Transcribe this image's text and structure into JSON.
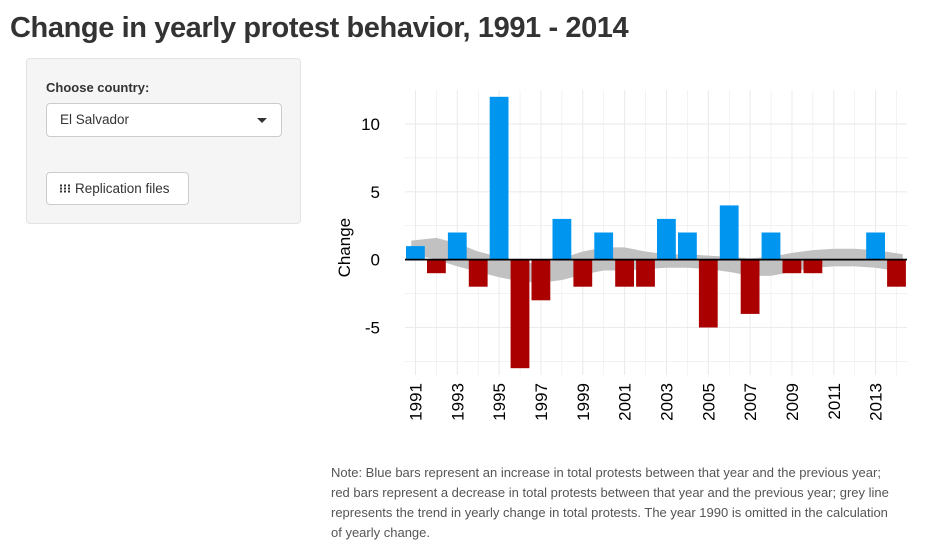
{
  "page": {
    "title": "Change in yearly protest behavior, 1991 - 2014"
  },
  "sidebar": {
    "country_label": "Choose country:",
    "country_value": "El Salvador",
    "replication_button": "Replication files",
    "replication_icon": "th-grid-icon"
  },
  "note": "Note: Blue bars represent an increase in total protests between that year and the previous year; red bars represent a decrease in total protests between that year and the previous year; grey line represents the trend in yearly change in total protests. The year 1990 is omitted in the calculation of yearly change.",
  "chart_data": {
    "type": "bar",
    "title": "",
    "ylabel": "Change",
    "xlabel": "",
    "x": [
      1991,
      1992,
      1993,
      1994,
      1995,
      1996,
      1997,
      1998,
      1999,
      2000,
      2001,
      2002,
      2003,
      2004,
      2005,
      2006,
      2007,
      2008,
      2009,
      2010,
      2011,
      2012,
      2013,
      2014
    ],
    "values": [
      1,
      -1,
      2,
      -2,
      12,
      -8,
      -3,
      3,
      -2,
      2,
      -2,
      -2,
      3,
      2,
      -5,
      4,
      -4,
      2,
      -1,
      -1,
      0,
      0,
      2,
      -2
    ],
    "xticks": [
      1991,
      1993,
      1995,
      1997,
      1999,
      2001,
      2003,
      2005,
      2007,
      2009,
      2011,
      2013
    ],
    "yticks": [
      -5,
      0,
      5,
      10
    ],
    "ylim": [
      -8.5,
      12.5
    ],
    "xlim": [
      1990.5,
      2014.5
    ],
    "colors": {
      "increase": "#0096f0",
      "decrease": "#aa0000",
      "trend": "#bebebe",
      "grid": "#ebebeb",
      "zero": "#000000"
    },
    "trend_band": {
      "x": [
        1990.8,
        1992,
        1993,
        1994,
        1995,
        1996,
        1997,
        1998,
        1999,
        2000,
        2001,
        2002,
        2003,
        2004,
        2005,
        2006,
        2007,
        2008,
        2009,
        2010,
        2011,
        2012,
        2013,
        2014.3
      ],
      "upper": [
        1.4,
        1.6,
        1.2,
        0.6,
        0.2,
        -0.2,
        -0.3,
        0.1,
        0.6,
        0.9,
        0.9,
        0.6,
        0.4,
        0.4,
        0.3,
        0.2,
        0.1,
        0.2,
        0.5,
        0.7,
        0.8,
        0.8,
        0.7,
        0.4
      ],
      "lower": [
        0.4,
        0.0,
        -0.5,
        -0.9,
        -1.3,
        -1.6,
        -1.7,
        -1.5,
        -1.1,
        -0.8,
        -0.8,
        -0.7,
        -0.6,
        -0.6,
        -0.7,
        -0.9,
        -1.2,
        -1.2,
        -0.9,
        -0.6,
        -0.5,
        -0.5,
        -0.6,
        -0.9
      ]
    },
    "grid": true,
    "legend": "none"
  }
}
